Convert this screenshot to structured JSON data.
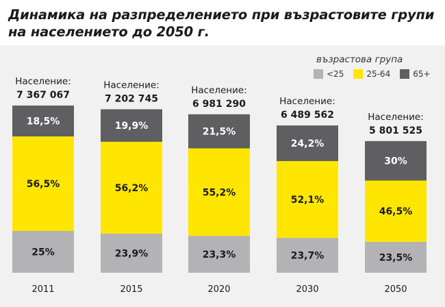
{
  "title_lines": [
    "Динамика на разпределението при възрастовите групи",
    "на населението до 2050 г."
  ],
  "legend": {
    "title": "възрастова група",
    "items": [
      {
        "label": "<25",
        "color": "#b3b3b5"
      },
      {
        "label": "25-64",
        "color": "#ffe600"
      },
      {
        "label": "65+",
        "color": "#5f5f61"
      }
    ]
  },
  "chart_data": {
    "type": "bar",
    "stacked": true,
    "categories": [
      "2011",
      "2015",
      "2020",
      "2030",
      "2050"
    ],
    "population_label": "Население:",
    "population": [
      "7 367 067",
      "7 202 745",
      "6 981 290",
      "6 489 562",
      "5 801 525"
    ],
    "population_values": [
      7367067,
      7202745,
      6981290,
      6489562,
      5801525
    ],
    "series": [
      {
        "name": "<25",
        "color": "#b3b3b5",
        "values": [
          25,
          23.9,
          23.3,
          23.7,
          23.5
        ],
        "labels": [
          "25%",
          "23,9%",
          "23,3%",
          "23,7%",
          "23,5%"
        ]
      },
      {
        "name": "25-64",
        "color": "#ffe600",
        "values": [
          56.5,
          56.2,
          55.2,
          52.1,
          46.5
        ],
        "labels": [
          "56,5%",
          "56,2%",
          "55,2%",
          "52,1%",
          "46,5%"
        ]
      },
      {
        "name": "65+",
        "color": "#5f5f61",
        "values": [
          18.5,
          19.9,
          21.5,
          24.2,
          30
        ],
        "labels": [
          "18,5%",
          "19,9%",
          "21,5%",
          "24,2%",
          "30%"
        ]
      }
    ]
  }
}
